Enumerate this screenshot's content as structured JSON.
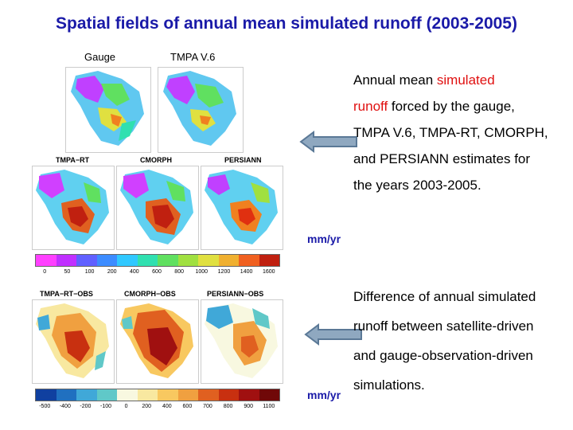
{
  "title": "Spatial fields of annual mean simulated runoff (2003-2005)",
  "panel_labels": {
    "gauge": "Gauge",
    "tmpa_v6": "TMPA V.6",
    "tmpa_rt": "TMPA−RT",
    "cmorph": "CMORPH",
    "persiann": "PERSIANN",
    "tmpa_rt_obs": "TMPA−RT−OBS",
    "cmorph_obs": "CMORPH−OBS",
    "persiann_obs": "PERSIANN−OBS"
  },
  "description1": {
    "part1": "Annual mean ",
    "highlight1": "simulated",
    "highlight2": "runoff",
    "part2": "  forced by the gauge, TMPA V.6, TMPA-RT, CMORPH, and PERSIANN estimates for the years 2003-2005."
  },
  "description2": "Difference of annual simulated runoff between satellite-driven and gauge-observation-driven simulations.",
  "units1": "mm/yr",
  "units2": "mm/yr",
  "colorbar1_ticks": [
    "0",
    "50",
    "100",
    "200",
    "400",
    "600",
    "800",
    "1000",
    "1200",
    "1400",
    "1600"
  ],
  "colorbar2_ticks": [
    "-500",
    "-400",
    "-200",
    "-100",
    "0",
    "200",
    "400",
    "600",
    "700",
    "800",
    "900",
    "1100"
  ],
  "colorbar1_colors": [
    "#ff40ff",
    "#c030ff",
    "#6060ff",
    "#3c8cff",
    "#30c8ff",
    "#30e0b0",
    "#60e060",
    "#a0e040",
    "#e0e040",
    "#f0b030",
    "#f06020",
    "#c02010"
  ],
  "colorbar2_colors": [
    "#1040a0",
    "#2070c0",
    "#40a8d8",
    "#60c8c8",
    "#f8f8e0",
    "#f8e8a0",
    "#f8c860",
    "#f0a040",
    "#e06020",
    "#c83010",
    "#a01010",
    "#700808"
  ],
  "colors": {
    "title": "#1a1aa8",
    "highlight": "#e01010",
    "arrow_fill": "#8fa8c0",
    "arrow_stroke": "#5a7896"
  }
}
